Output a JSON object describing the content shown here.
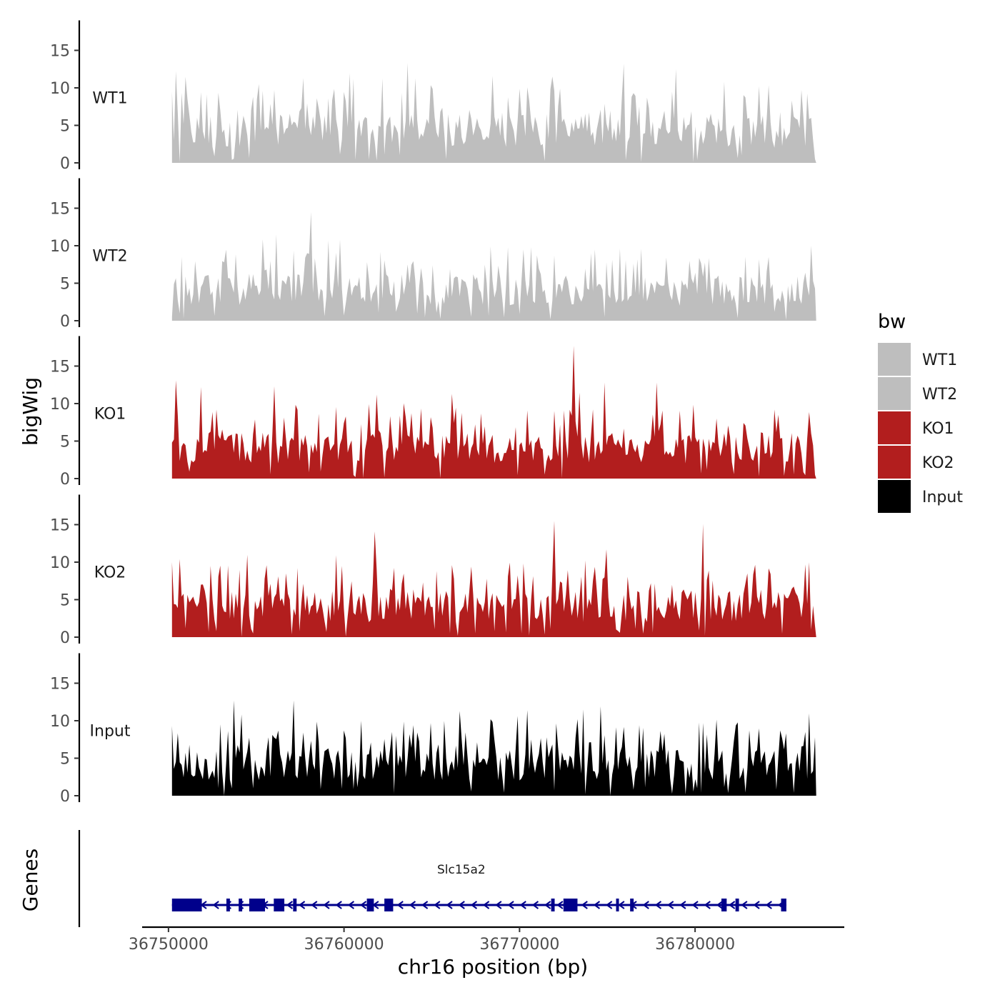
{
  "chart_data": {
    "type": "area",
    "title": "",
    "chromosome": "chr16",
    "xlabel": "chr16 position (bp)",
    "ylabel": "bigWig",
    "xlim": [
      36748500,
      36788500
    ],
    "data_range": [
      36750200,
      36786900
    ],
    "x_ticks": [
      36750000,
      36760000,
      36770000,
      36780000
    ],
    "x_tick_labels": [
      "36750000",
      "36760000",
      "36770000",
      "36780000"
    ],
    "ylim": [
      0,
      19
    ],
    "y_ticks": [
      0,
      5,
      10,
      15
    ],
    "y_tick_labels": [
      "0",
      "5",
      "10",
      "15"
    ],
    "legend": {
      "title": "bw",
      "position": "right",
      "entries": [
        {
          "label": "WT1",
          "color": "#bebebe"
        },
        {
          "label": "WT2",
          "color": "#bebebe"
        },
        {
          "label": "KO1",
          "color": "#b21e1e"
        },
        {
          "label": "KO2",
          "color": "#b21e1e"
        },
        {
          "label": "Input",
          "color": "#000000"
        }
      ]
    },
    "series": [
      {
        "name": "WT1",
        "color": "#bebebe",
        "peaks": [
          [
            36750200,
            9.5
          ],
          [
            36750400,
            12.2
          ],
          [
            36751200,
            6.4
          ],
          [
            36753000,
            7.0
          ],
          [
            36755200,
            10.5
          ],
          [
            36757700,
            11.3
          ],
          [
            36760500,
            11.2
          ],
          [
            36763600,
            13.3
          ],
          [
            36765800,
            0.5
          ],
          [
            36768500,
            11.6
          ],
          [
            36775900,
            13.2
          ],
          [
            36778900,
            12.5
          ],
          [
            36781700,
            10.8
          ],
          [
            36783600,
            10.2
          ],
          [
            36786900,
            0.5
          ]
        ]
      },
      {
        "name": "WT2",
        "color": "#bebebe",
        "peaks": [
          [
            36750200,
            0.5
          ],
          [
            36750700,
            8.5
          ],
          [
            36753200,
            7.8
          ],
          [
            36755800,
            8.0
          ],
          [
            36758100,
            14.5
          ],
          [
            36759100,
            10.7
          ],
          [
            36763600,
            7.5
          ],
          [
            36766500,
            5.8
          ],
          [
            36768300,
            9.9
          ],
          [
            36772000,
            8.7
          ],
          [
            36774300,
            9.5
          ],
          [
            36776900,
            9.6
          ],
          [
            36779700,
            8.0
          ],
          [
            36783600,
            8.2
          ],
          [
            36786900,
            4.3
          ]
        ]
      },
      {
        "name": "KO1",
        "color": "#b21e1e",
        "peaks": [
          [
            36750200,
            4.8
          ],
          [
            36750400,
            13.1
          ],
          [
            36751800,
            12.2
          ],
          [
            36756000,
            12.3
          ],
          [
            36760700,
            0.2
          ],
          [
            36761900,
            11.2
          ],
          [
            36766200,
            11.3
          ],
          [
            36771000,
            5.0
          ],
          [
            36773100,
            17.7
          ],
          [
            36774800,
            12.8
          ],
          [
            36777800,
            12.8
          ],
          [
            36781200,
            8.0
          ],
          [
            36783600,
            0.3
          ],
          [
            36784500,
            9.2
          ],
          [
            36786900,
            0.5
          ]
        ]
      },
      {
        "name": "KO2",
        "color": "#b21e1e",
        "peaks": [
          [
            36750200,
            10.0
          ],
          [
            36751900,
            7.0
          ],
          [
            36754800,
            0.5
          ],
          [
            36756700,
            8.5
          ],
          [
            36759900,
            9.5
          ],
          [
            36761800,
            14.1
          ],
          [
            36764300,
            5.2
          ],
          [
            36767300,
            9.4
          ],
          [
            36770100,
            0.5
          ],
          [
            36772000,
            15.5
          ],
          [
            36774900,
            11.7
          ],
          [
            36779000,
            3.2
          ],
          [
            36780500,
            15.1
          ],
          [
            36783000,
            8.5
          ],
          [
            36786900,
            1.5
          ]
        ]
      },
      {
        "name": "Input",
        "color": "#000000",
        "peaks": [
          [
            36750200,
            9.3
          ],
          [
            36753700,
            12.7
          ],
          [
            36757100,
            12.7
          ],
          [
            36760000,
            8.7
          ],
          [
            36763000,
            8.0
          ],
          [
            36764900,
            9.7
          ],
          [
            36766600,
            11.3
          ],
          [
            36768400,
            10.2
          ],
          [
            36770700,
            7.5
          ],
          [
            36773300,
            10.2
          ],
          [
            36773700,
            0.2
          ],
          [
            36776800,
            9.4
          ],
          [
            36780500,
            9.7
          ],
          [
            36784900,
            8.7
          ],
          [
            36786900,
            7.8
          ]
        ]
      }
    ],
    "genes_track": {
      "label": "Genes",
      "genes": [
        {
          "name": "Slc15a2",
          "start": 36750200,
          "end": 36785200,
          "strand": "-",
          "color": "#00008b",
          "exons": [
            [
              36750200,
              36751900
            ],
            [
              36753300,
              36753500
            ],
            [
              36754000,
              36754200
            ],
            [
              36754600,
              36755500
            ],
            [
              36756000,
              36756600
            ],
            [
              36757100,
              36757300
            ],
            [
              36761300,
              36761700
            ],
            [
              36762300,
              36762800
            ],
            [
              36771800,
              36772000
            ],
            [
              36772500,
              36773300
            ],
            [
              36775500,
              36775600
            ],
            [
              36776300,
              36776500
            ],
            [
              36781500,
              36781800
            ],
            [
              36782300,
              36782500
            ],
            [
              36784900,
              36785200
            ]
          ]
        }
      ]
    }
  }
}
